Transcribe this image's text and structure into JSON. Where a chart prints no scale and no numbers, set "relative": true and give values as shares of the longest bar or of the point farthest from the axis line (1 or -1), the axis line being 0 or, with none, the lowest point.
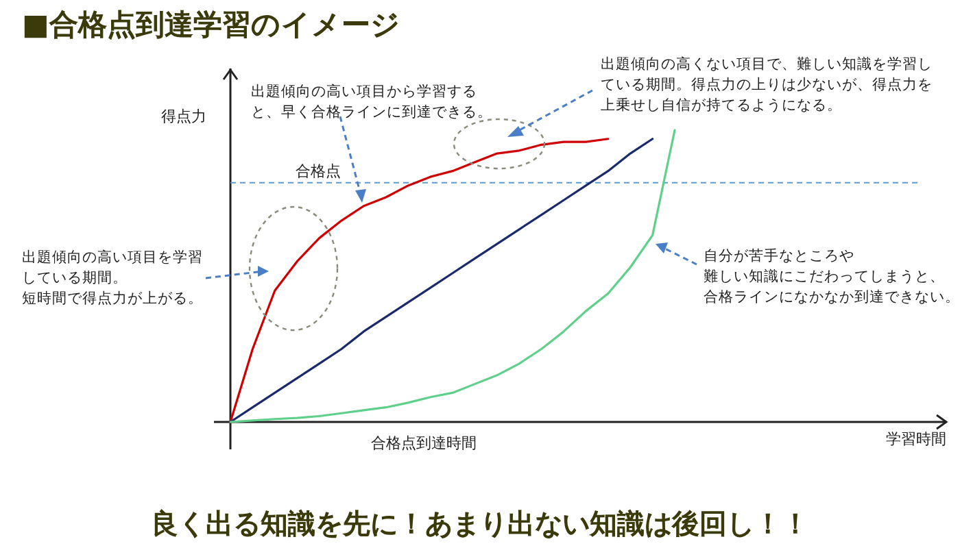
{
  "chart_data": {
    "type": "line",
    "title": "■合格点到達学習のイメージ",
    "relative": true,
    "ylabel": "得点力",
    "categories": [
      null,
      null,
      null,
      null,
      null,
      null,
      null,
      null,
      null,
      null,
      null,
      null,
      null,
      null,
      null,
      null,
      null,
      null,
      null,
      null,
      null
    ],
    "series": [
      {
        "color": "#d00000",
        "values": [
          0,
          0.25,
          0.45,
          0.55,
          0.63,
          0.69,
          0.74,
          0.77,
          0.81,
          0.84,
          0.86,
          0.89,
          0.92,
          0.93,
          0.95,
          0.96,
          0.96,
          0.97,
          null,
          null,
          null
        ]
      },
      {
        "color": "#1a2a6c",
        "values": [
          0,
          0.05,
          0.1,
          0.15,
          0.2,
          0.25,
          0.31,
          0.36,
          0.41,
          0.46,
          0.51,
          0.56,
          0.61,
          0.66,
          0.71,
          0.76,
          0.81,
          0.86,
          0.92,
          0.97,
          null
        ]
      },
      {
        "color": "#5fd08a",
        "values": [
          0,
          0.005,
          0.01,
          0.014,
          0.02,
          0.03,
          0.04,
          0.05,
          0.066,
          0.085,
          0.1,
          0.13,
          0.16,
          0.2,
          0.25,
          0.31,
          0.38,
          0.44,
          0.53,
          0.64,
          1
        ]
      }
    ],
    "ref_lines": [
      {
        "axis": "y",
        "value": 0.82,
        "label": "合格点",
        "color": "#5b9bd5",
        "line_style": "dashed"
      }
    ],
    "annotations": [
      "出題傾向の高い項目から学習すると、早く合格ラインに到達できる。",
      "出題傾向の高くない項目で、難しい知識を学習している期間。得点力の上りは少ないが、得点力を上乗せし自信が持てるようになる。",
      "出題傾向の高い項目を学習している期間。短時間で得点力が上がる。",
      "自分が苦手なところや難しい知識にこだわってしまうと、合格ラインになかなか到達できない。",
      "合格点到達時間",
      "良く出る知識を先に！あまり出ない知識は後回し！！",
      "学習時間"
    ]
  }
}
